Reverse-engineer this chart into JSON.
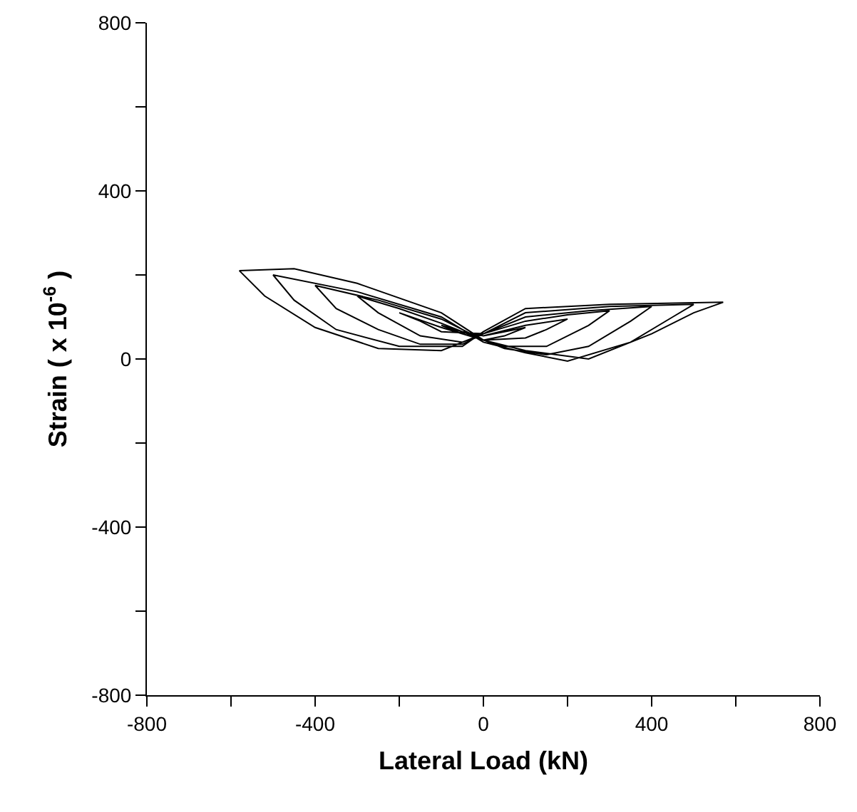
{
  "chart_data": {
    "type": "line",
    "xlabel": "Lateral Load (kN)",
    "ylabel": "Strain ( x 10$^{-6}$ )",
    "xlim": [
      -800,
      800
    ],
    "ylim": [
      -800,
      800
    ],
    "xticks": [
      -800,
      {
        "value": -600,
        "label": null
      },
      -400,
      {
        "value": -200,
        "label": null
      },
      0,
      {
        "value": 200,
        "label": null
      },
      400,
      {
        "value": 600,
        "label": null
      },
      800
    ],
    "yticks": [
      -800,
      {
        "value": -600,
        "label": null
      },
      -400,
      {
        "value": -200,
        "label": null
      },
      0,
      {
        "value": 200,
        "label": null
      },
      400,
      {
        "value": 600,
        "label": null
      },
      800
    ],
    "marker": "none",
    "line_style": "solid",
    "series": [
      {
        "color": "#000000",
        "x": [
          0,
          50,
          100,
          50,
          0,
          -50,
          -100,
          -50,
          0,
          100,
          200,
          150,
          100,
          0,
          -100,
          -200,
          -150,
          -100,
          0,
          100,
          200,
          300,
          250,
          150,
          50,
          0,
          -100,
          -200,
          -300,
          -250,
          -150,
          -50,
          0,
          100,
          250,
          400,
          350,
          250,
          150,
          50,
          0,
          -100,
          -250,
          -400,
          -350,
          -250,
          -150,
          -50,
          0,
          100,
          300,
          500,
          450,
          350,
          200,
          100,
          0,
          -100,
          -300,
          -500,
          -450,
          -350,
          -200,
          -50,
          0,
          100,
          300,
          570,
          500,
          400,
          250,
          100,
          0,
          -100,
          -300,
          -450,
          -580,
          -520,
          -400,
          -250,
          -100,
          0
        ],
        "values": [
          55,
          65,
          75,
          55,
          45,
          60,
          80,
          65,
          55,
          80,
          95,
          70,
          50,
          45,
          75,
          110,
          90,
          65,
          60,
          90,
          105,
          115,
          80,
          30,
          30,
          45,
          85,
          120,
          150,
          110,
          55,
          40,
          60,
          100,
          115,
          125,
          90,
          30,
          10,
          25,
          45,
          95,
          140,
          175,
          120,
          70,
          35,
          35,
          60,
          110,
          125,
          130,
          100,
          40,
          -5,
          15,
          40,
          100,
          160,
          200,
          140,
          70,
          30,
          30,
          65,
          120,
          130,
          135,
          110,
          60,
          0,
          20,
          45,
          110,
          180,
          215,
          210,
          150,
          75,
          25,
          20,
          60
        ]
      }
    ]
  }
}
